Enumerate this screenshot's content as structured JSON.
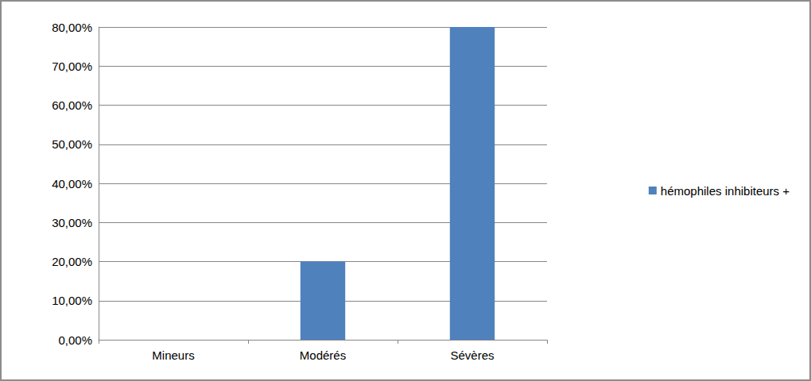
{
  "chart_data": {
    "type": "bar",
    "categories": [
      "Mineurs",
      "Modérés",
      "Sévères"
    ],
    "series": [
      {
        "name": "hémophiles inhibiteurs +",
        "color": "#4f81bd",
        "values": [
          0,
          20,
          80
        ]
      }
    ],
    "ylim": [
      0,
      80
    ],
    "yticks": [
      {
        "value": 0,
        "label": "0,00%"
      },
      {
        "value": 10,
        "label": "10,00%"
      },
      {
        "value": 20,
        "label": "20,00%"
      },
      {
        "value": 30,
        "label": "30,00%"
      },
      {
        "value": 40,
        "label": "40,00%"
      },
      {
        "value": 50,
        "label": "50,00%"
      },
      {
        "value": 60,
        "label": "60,00%"
      },
      {
        "value": 70,
        "label": "70,00%"
      },
      {
        "value": 80,
        "label": "80,00%"
      }
    ],
    "grid": true,
    "legend": "right"
  }
}
